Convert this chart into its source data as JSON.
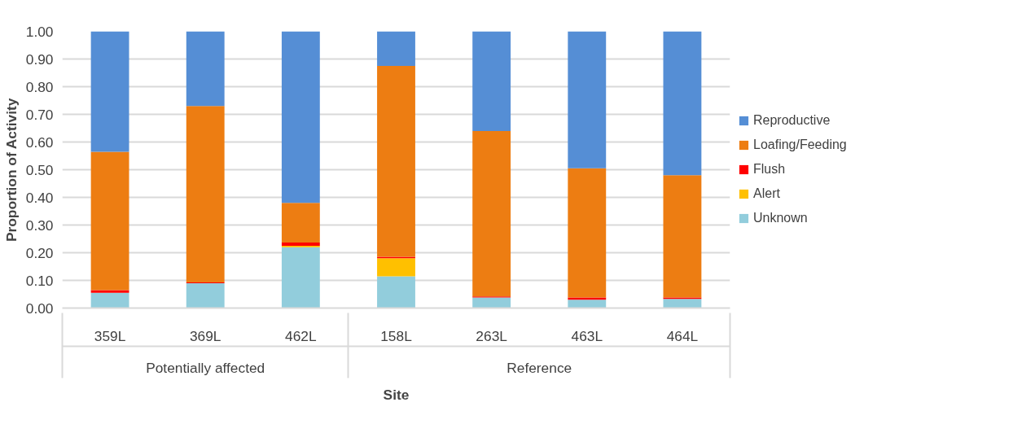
{
  "chart_data": {
    "type": "bar",
    "stacked": true,
    "xlabel": "Site",
    "ylabel": "Proportion of Activity",
    "categories": [
      "359L",
      "369L",
      "462L",
      "158L",
      "263L",
      "463L",
      "464L"
    ],
    "series": [
      {
        "name": "Unknown",
        "color": "#92cddc",
        "values": [
          0.055,
          0.09,
          0.22,
          0.115,
          0.038,
          0.03,
          0.033
        ]
      },
      {
        "name": "Alert",
        "color": "#ffc000",
        "values": [
          0,
          0,
          0.005,
          0.065,
          0,
          0,
          0
        ]
      },
      {
        "name": "Flush",
        "color": "#ff0000",
        "values": [
          0.01,
          0.003,
          0.012,
          0.005,
          0.004,
          0.008,
          0.005
        ]
      },
      {
        "name": "Loafing/Feeding",
        "color": "#ed7d12",
        "values": [
          0.5,
          0.637,
          0.143,
          0.69,
          0.598,
          0.467,
          0.442
        ]
      },
      {
        "name": "Reproductive",
        "color": "#558ed5",
        "values": [
          0.435,
          0.27,
          0.62,
          0.125,
          0.36,
          0.495,
          0.52
        ]
      }
    ],
    "ylim": [
      0,
      1
    ],
    "yticks": [
      {
        "value": 0,
        "label": "0.00"
      },
      {
        "value": 0.1,
        "label": "0.10"
      },
      {
        "value": 0.2,
        "label": "0.20"
      },
      {
        "value": 0.3,
        "label": "0.30"
      },
      {
        "value": 0.4,
        "label": "0.40"
      },
      {
        "value": 0.5,
        "label": "0.50"
      },
      {
        "value": 0.6,
        "label": "0.60"
      },
      {
        "value": 0.7,
        "label": "0.70"
      },
      {
        "value": 0.8,
        "label": "0.80"
      },
      {
        "value": 0.9,
        "label": "0.90"
      },
      {
        "value": 1,
        "label": "1.00"
      }
    ],
    "annotations": [
      "Potentially affected",
      "Reference"
    ],
    "grid": "y",
    "legend": "right"
  }
}
